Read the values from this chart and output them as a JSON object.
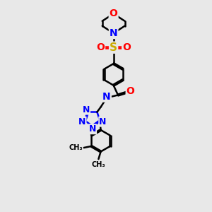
{
  "bg_color": "#e8e8e8",
  "bond_color": "#000000",
  "atom_colors": {
    "O": "#ff0000",
    "N": "#0000ff",
    "S": "#ccaa00",
    "H": "#008080",
    "C": "#000000"
  },
  "figsize": [
    3.0,
    3.0
  ],
  "dpi": 100,
  "xlim": [
    0,
    10
  ],
  "ylim": [
    0,
    14
  ]
}
